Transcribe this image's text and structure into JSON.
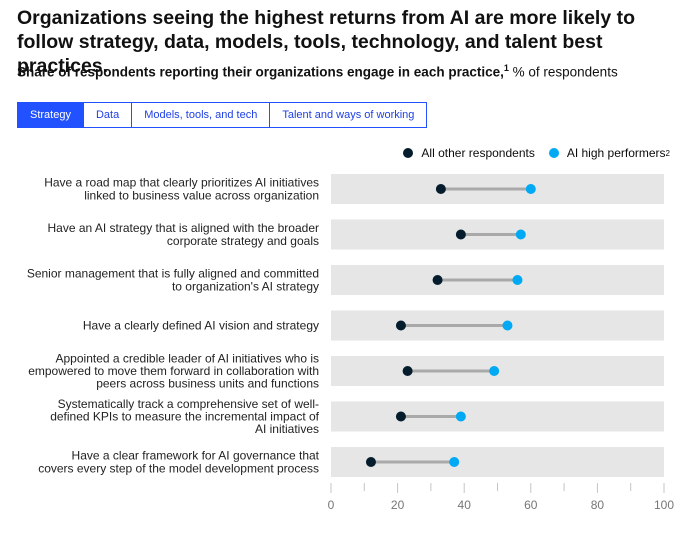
{
  "header": {
    "title": "Organizations seeing the highest returns from AI are more likely to follow strategy, data, models, tools, technology, and talent best practices.",
    "subtitle_bold": "Share of respondents reporting their organizations engage in each practice,",
    "subtitle_sup": "1",
    "subtitle_rest": " % of respondents"
  },
  "tabs": [
    {
      "label": "Strategy",
      "active": true
    },
    {
      "label": "Data",
      "active": false
    },
    {
      "label": "Models, tools, and tech",
      "active": false
    },
    {
      "label": "Talent and ways of working",
      "active": false
    }
  ],
  "colors": {
    "other": "#051c2c",
    "high": "#00a9f4",
    "band": "#e6e6e6",
    "connector": "#a9a9a9",
    "accent": "#2251ff"
  },
  "chart_data": {
    "type": "dumbbell",
    "title": "",
    "xlim": [
      0,
      100
    ],
    "xticks": [
      0,
      20,
      40,
      60,
      80,
      100
    ],
    "legend_position": "top-right",
    "series": [
      {
        "name": "All other respondents",
        "legend_sup": ""
      },
      {
        "name": "AI high performers",
        "legend_sup": "2"
      }
    ],
    "categories": [
      [
        "Have a road map that clearly prioritizes AI initiatives",
        "linked to business value across organization"
      ],
      [
        "Have an AI strategy that is aligned with the broader",
        "corporate strategy and goals"
      ],
      [
        "Senior management that is fully aligned and committed",
        "to organization's AI strategy"
      ],
      [
        "Have a clearly defined AI vision and strategy"
      ],
      [
        "Appointed a credible leader of AI initiatives who is",
        "empowered to move them forward in collaboration with",
        "peers across business units and functions"
      ],
      [
        "Systematically track a comprehensive set of well-",
        "defined KPIs to measure the incremental impact of",
        "AI initiatives"
      ],
      [
        "Have a clear framework for AI governance that",
        "covers every step of the model development process"
      ]
    ],
    "other_values": [
      33,
      39,
      32,
      21,
      23,
      21,
      12
    ],
    "high_values": [
      60,
      57,
      56,
      53,
      49,
      39,
      37
    ]
  }
}
